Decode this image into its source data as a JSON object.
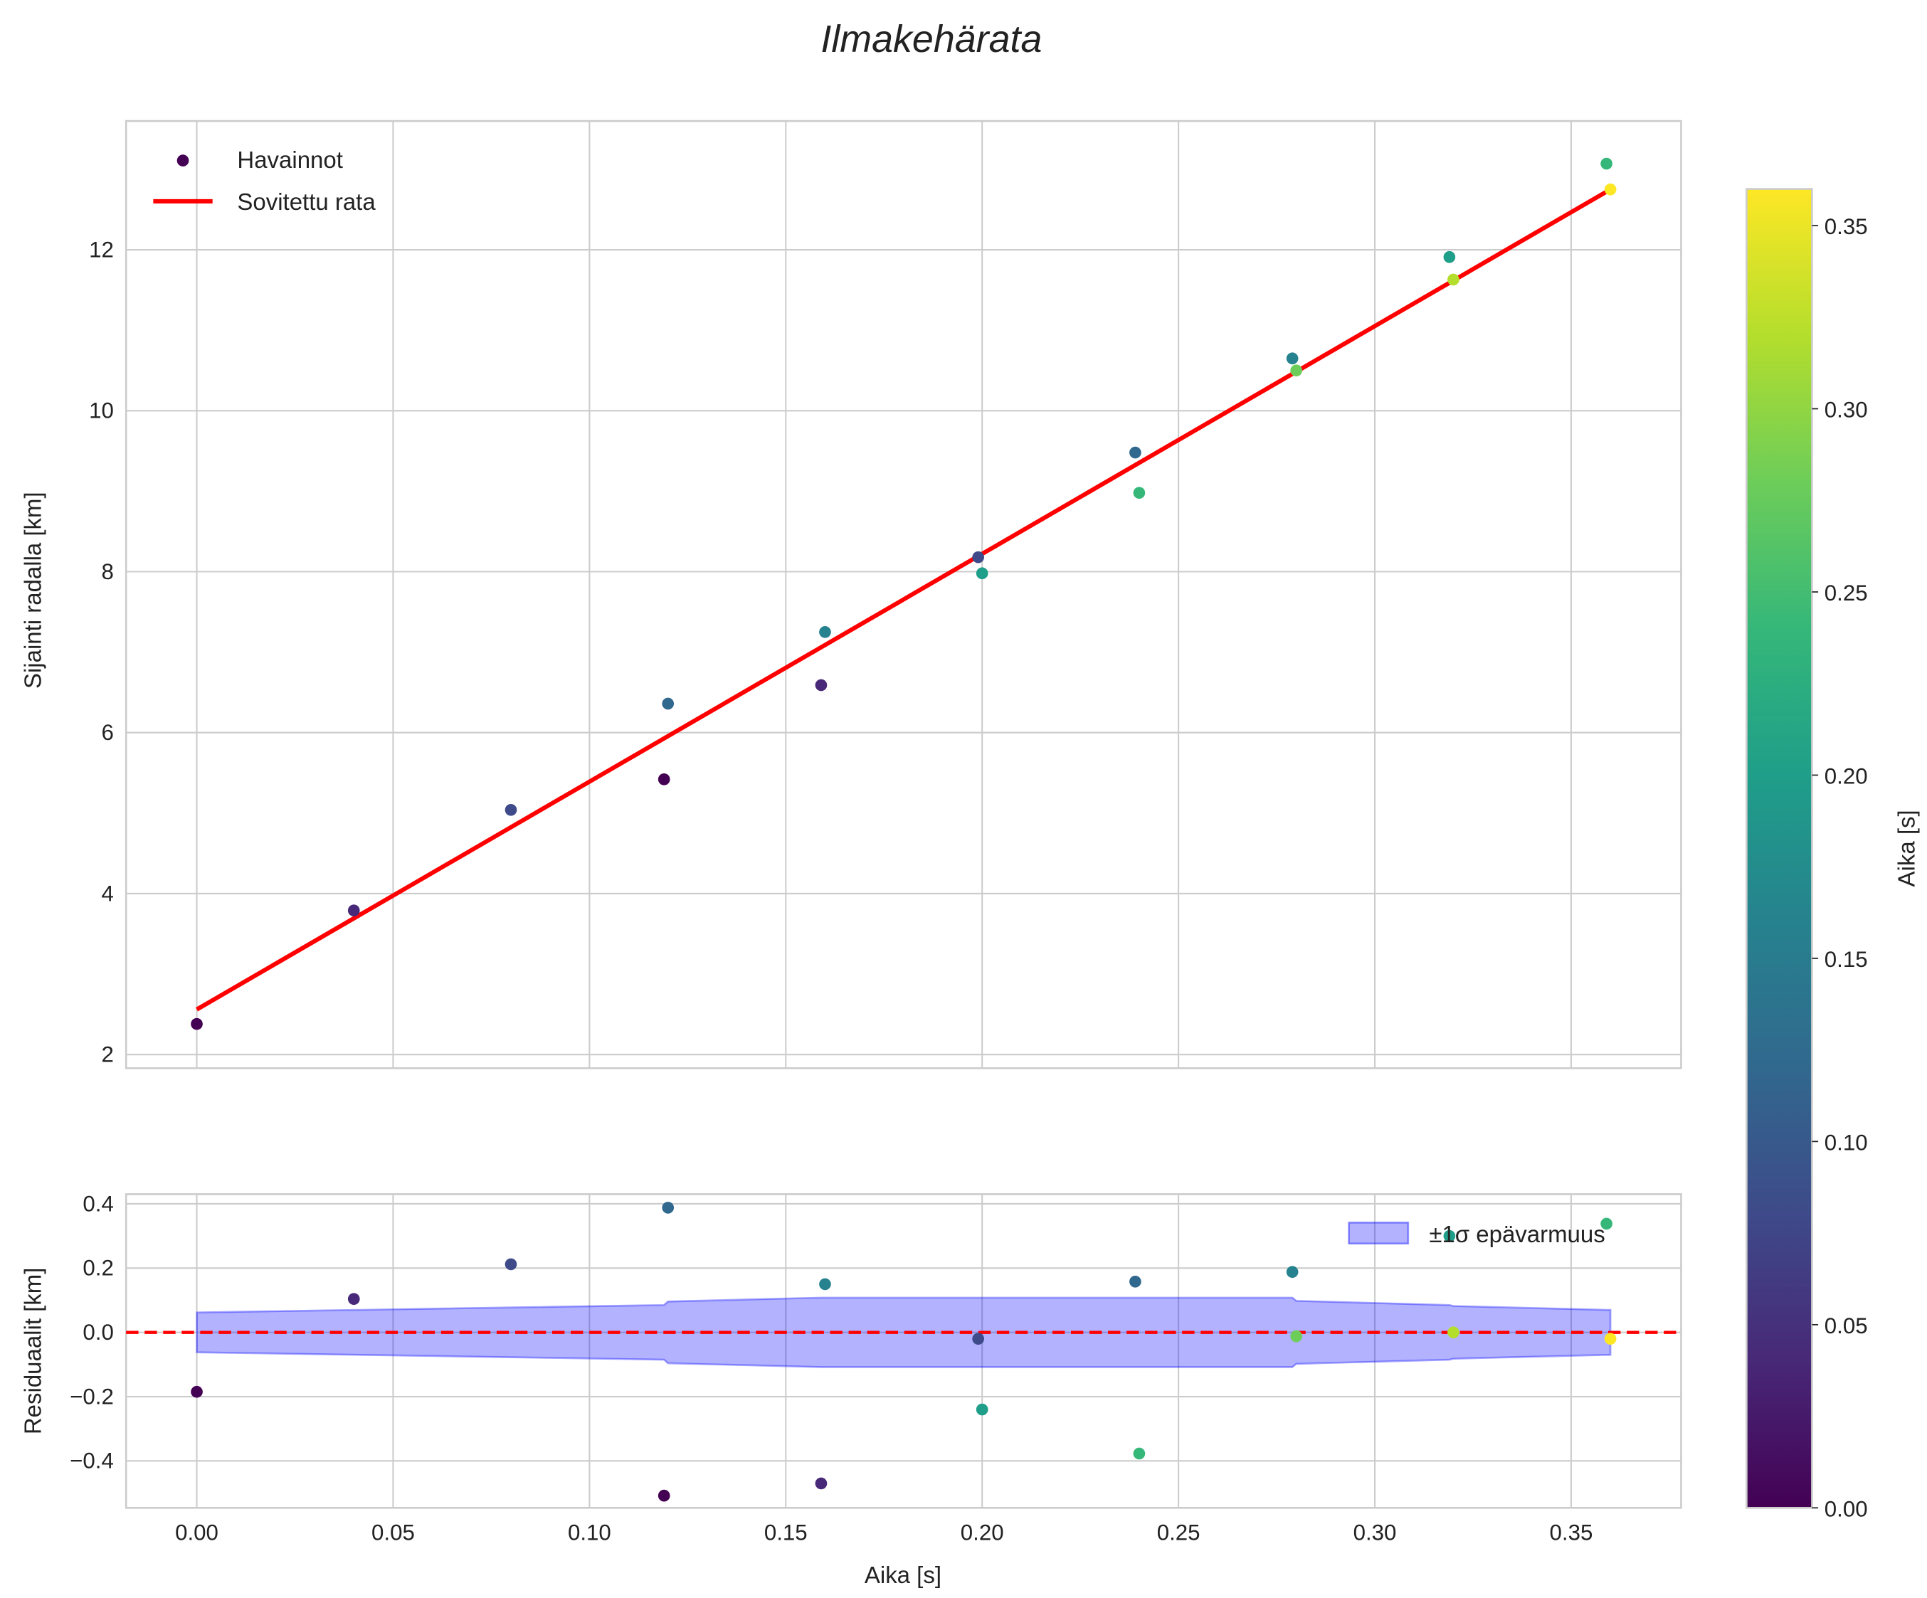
{
  "chart_data": [
    {
      "type": "scatter",
      "title": "Ilmakehärata",
      "xlabel": "",
      "ylabel": "Sijainti radalla [km]",
      "xlim": [
        -0.018,
        0.378
      ],
      "ylim": [
        1.83,
        13.6
      ],
      "xticks": [
        0.0,
        0.05,
        0.1,
        0.15,
        0.2,
        0.25,
        0.3,
        0.35
      ],
      "yticks": [
        2,
        4,
        6,
        8,
        10,
        12
      ],
      "ytick_labels": [
        "2",
        "4",
        "6",
        "8",
        "10",
        "12"
      ],
      "grid": true,
      "legend": {
        "placement": "top-left",
        "entries": [
          "Havainnot",
          "Sovitettu rata"
        ]
      },
      "series": [
        {
          "name": "Havainnot",
          "type": "scatter",
          "x": [
            0.0,
            0.04,
            0.08,
            0.12,
            0.119,
            0.16,
            0.159,
            0.199,
            0.2,
            0.239,
            0.24,
            0.279,
            0.28,
            0.319,
            0.32,
            0.359,
            0.36
          ],
          "y": [
            2.38,
            3.79,
            5.04,
            6.36,
            5.42,
            7.25,
            6.59,
            8.18,
            7.98,
            9.48,
            8.98,
            10.65,
            10.5,
            11.91,
            11.63,
            13.07,
            12.75
          ],
          "c": [
            0.0,
            0.04,
            0.08,
            0.12,
            0.0,
            0.16,
            0.04,
            0.08,
            0.2,
            0.12,
            0.24,
            0.16,
            0.28,
            0.2,
            0.32,
            0.24,
            0.36
          ]
        },
        {
          "name": "Sovitettu rata",
          "type": "line",
          "color": "#ff0000",
          "x": [
            0.0,
            0.36
          ],
          "y": [
            2.56,
            12.75
          ]
        }
      ]
    },
    {
      "type": "scatter",
      "xlabel": "Aika [s]",
      "ylabel": "Residuaalit [km]",
      "xlim": [
        -0.018,
        0.378
      ],
      "ylim": [
        -0.546,
        0.43
      ],
      "xticks": [
        0.0,
        0.05,
        0.1,
        0.15,
        0.2,
        0.25,
        0.3,
        0.35
      ],
      "xtick_labels": [
        "0.00",
        "0.05",
        "0.10",
        "0.15",
        "0.20",
        "0.25",
        "0.30",
        "0.35"
      ],
      "yticks": [
        -0.4,
        -0.2,
        0.0,
        0.2,
        0.4
      ],
      "ytick_labels": [
        "−0.4",
        "−0.2",
        "0.0",
        "0.2",
        "0.4"
      ],
      "grid": true,
      "legend": {
        "placement": "top-right",
        "entries": [
          "±1σ epävarmuus"
        ]
      },
      "residuals": {
        "x": [
          0.0,
          0.04,
          0.08,
          0.12,
          0.119,
          0.16,
          0.159,
          0.199,
          0.2,
          0.239,
          0.24,
          0.279,
          0.28,
          0.319,
          0.32,
          0.359,
          0.36
        ],
        "y": [
          -0.185,
          0.104,
          0.212,
          0.388,
          -0.508,
          0.15,
          -0.47,
          -0.02,
          -0.24,
          0.158,
          -0.377,
          0.188,
          -0.012,
          0.3,
          0.0,
          0.338,
          -0.02
        ],
        "c": [
          0.0,
          0.04,
          0.08,
          0.12,
          0.0,
          0.16,
          0.04,
          0.08,
          0.2,
          0.12,
          0.24,
          0.16,
          0.28,
          0.2,
          0.32,
          0.24,
          0.36
        ]
      },
      "band": {
        "name": "±1σ epävarmuus",
        "color": "#0000ff",
        "x": [
          0.0,
          0.119,
          0.12,
          0.159,
          0.16,
          0.279,
          0.28,
          0.319,
          0.32,
          0.359,
          0.36
        ],
        "sigma": [
          0.062,
          0.085,
          0.096,
          0.108,
          0.108,
          0.108,
          0.098,
          0.085,
          0.082,
          0.07,
          0.07
        ]
      },
      "zero_line": {
        "y": 0,
        "color": "#ff0000",
        "style": "dashed"
      }
    }
  ],
  "colorbar": {
    "label": "Aika [s]",
    "range": [
      0.0,
      0.36
    ],
    "ticks": [
      "0.00",
      "0.05",
      "0.10",
      "0.15",
      "0.20",
      "0.25",
      "0.30",
      "0.35"
    ],
    "colormap": "viridis"
  }
}
